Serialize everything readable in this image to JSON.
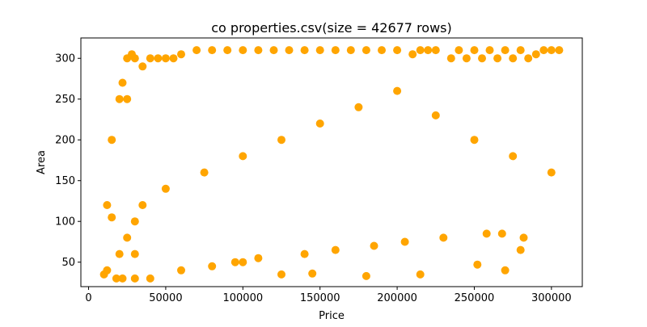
{
  "chart_data": {
    "type": "scatter",
    "title": "co properties.csv(size = 42677 rows)",
    "xlabel": "Price",
    "ylabel": "Area",
    "xlim": [
      -5000,
      320000
    ],
    "ylim": [
      20,
      325
    ],
    "xticks": [
      0,
      50000,
      100000,
      150000,
      200000,
      250000,
      300000
    ],
    "xtick_labels": [
      "0",
      "50000",
      "100000",
      "150000",
      "200000",
      "250000",
      "300000"
    ],
    "yticks": [
      50,
      100,
      150,
      200,
      250,
      300
    ],
    "ytick_labels": [
      "50",
      "100",
      "150",
      "200",
      "250",
      "300"
    ],
    "grid": false,
    "legend": "none",
    "marker_color": "#FFA500",
    "series": [
      {
        "x": [
          10000,
          12000,
          15000,
          15000,
          20000,
          22000,
          25000,
          25000,
          28000,
          30000,
          30000,
          35000,
          40000,
          45000,
          50000,
          55000,
          60000,
          70000,
          80000,
          90000,
          100000,
          110000,
          120000,
          130000,
          140000,
          150000,
          160000,
          170000,
          180000,
          190000,
          200000,
          210000,
          215000,
          220000,
          225000,
          235000,
          240000,
          245000,
          250000,
          255000,
          260000,
          265000,
          270000,
          275000,
          280000,
          285000,
          290000,
          295000,
          300000,
          305000,
          12000,
          20000,
          25000,
          30000,
          35000,
          50000,
          75000,
          100000,
          125000,
          150000,
          175000,
          200000,
          225000,
          250000,
          275000,
          300000,
          60000,
          80000,
          95000,
          110000,
          140000,
          160000,
          185000,
          205000,
          230000,
          258000,
          268000,
          282000,
          252000,
          270000,
          280000,
          215000,
          180000,
          125000,
          145000,
          100000,
          40000,
          22000,
          18000,
          30000
        ],
        "y": [
          35,
          120,
          105,
          200,
          250,
          270,
          300,
          250,
          305,
          300,
          60,
          290,
          300,
          300,
          300,
          300,
          305,
          310,
          310,
          310,
          310,
          310,
          310,
          310,
          310,
          310,
          310,
          310,
          310,
          310,
          310,
          305,
          310,
          310,
          310,
          300,
          310,
          300,
          310,
          300,
          310,
          300,
          310,
          300,
          310,
          300,
          305,
          310,
          310,
          310,
          40,
          60,
          80,
          100,
          120,
          140,
          160,
          180,
          200,
          220,
          240,
          260,
          230,
          200,
          180,
          160,
          40,
          45,
          50,
          55,
          60,
          65,
          70,
          75,
          80,
          85,
          85,
          80,
          47,
          40,
          65,
          35,
          33,
          35,
          36,
          50,
          30,
          30,
          30,
          30
        ]
      }
    ]
  }
}
